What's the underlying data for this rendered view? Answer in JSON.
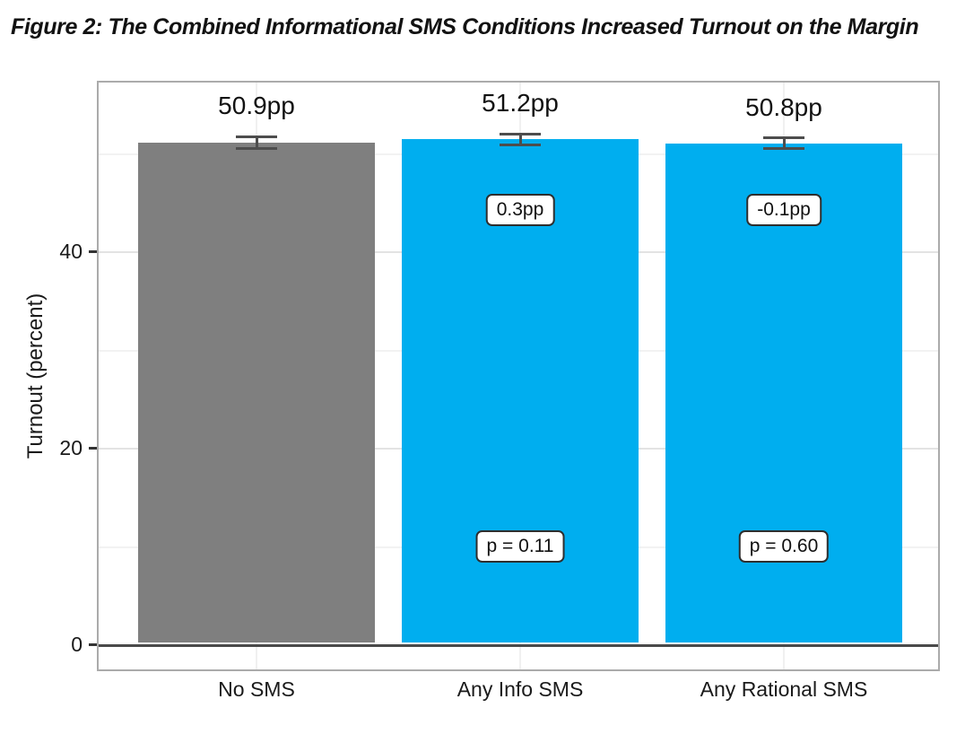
{
  "figure_title": "Figure 2: The Combined Informational SMS Conditions Increased Turnout on the Margin",
  "chart_data": {
    "type": "bar",
    "title": "Figure 2: The Combined Informational SMS Conditions Increased Turnout on the Margin",
    "categories": [
      "No SMS",
      "Any Info SMS",
      "Any Rational SMS"
    ],
    "values": [
      50.9,
      51.2,
      50.8
    ],
    "bar_value_labels": [
      "50.9pp",
      "51.2pp",
      "50.8pp"
    ],
    "bar_colors": [
      "#7f7f7f",
      "#00aeef",
      "#00aeef"
    ],
    "error_bars": [
      {
        "low": 50.45,
        "high": 51.35
      },
      {
        "low": 50.8,
        "high": 51.6
      },
      {
        "low": 50.4,
        "high": 51.2
      }
    ],
    "effect_labels": [
      "",
      "0.3pp",
      "-0.1pp"
    ],
    "p_value_labels": [
      "",
      "p = 0.11",
      "p = 0.60"
    ],
    "xlabel": "",
    "ylabel": "Turnout (percent)",
    "ytick_labels": [
      "0",
      "20",
      "40"
    ],
    "ytick_values": [
      0,
      20,
      40
    ],
    "ylim": [
      -2.7,
      57.4
    ],
    "grid": {
      "h_major": [
        20,
        40
      ],
      "h_minor": [
        10,
        30,
        50
      ],
      "v_at_category_centers": true
    },
    "legend_position": "none",
    "colors": {
      "control_bar": "#7f7f7f",
      "treatment_bar": "#00aeef",
      "zero_line": "#4a4a4a",
      "error_bar": "#4d4d4d"
    }
  }
}
